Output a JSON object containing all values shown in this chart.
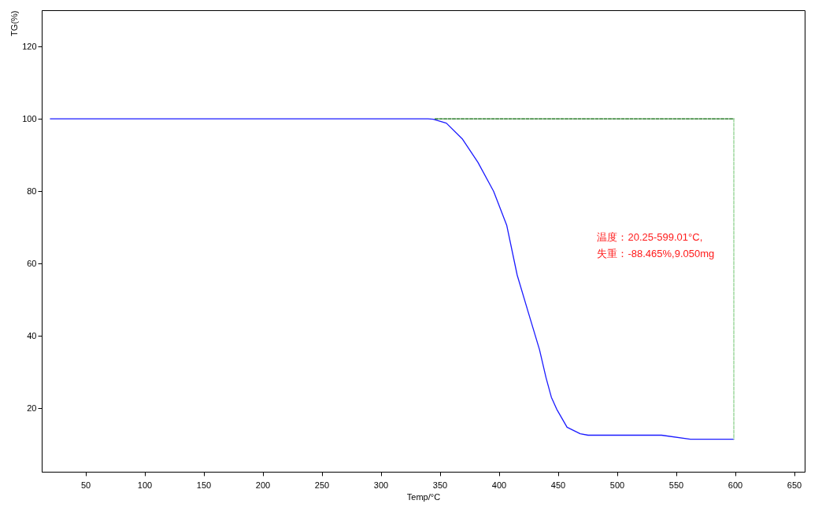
{
  "chart_data": {
    "type": "line",
    "xlabel": "Temp/°C",
    "ylabel": "TG(%)",
    "xlim": [
      13,
      659
    ],
    "xticks": [
      50,
      100,
      150,
      200,
      250,
      300,
      350,
      400,
      450,
      500,
      550,
      600,
      650
    ],
    "ylim": [
      2.5,
      130
    ],
    "yticks": [
      20,
      40,
      60,
      80,
      100,
      120
    ],
    "grid": false,
    "series": [
      {
        "color": "#1a1aff",
        "line_style": "solid",
        "x": [
          20.25,
          340,
          344.5,
          355.6,
          369,
          382.3,
          395.6,
          406.7,
          415.6,
          425,
          434.5,
          440,
          444.5,
          449,
          457.8,
          468.9,
          475.6,
          537.8,
          562.2,
          599
        ],
        "values": [
          100,
          100,
          99.9,
          98.8,
          94.5,
          88,
          80,
          70.6,
          56.8,
          46.5,
          36.2,
          28.5,
          23.1,
          19.8,
          14.8,
          13,
          12.6,
          12.6,
          11.5,
          11.5
        ]
      },
      {
        "color": "#006400",
        "line_style": "dashed",
        "x": [
          346,
          599.01
        ],
        "values": [
          100,
          100
        ]
      },
      {
        "color": "#8fd18f",
        "line_style": "dashed",
        "x": [
          599.01,
          599.01
        ],
        "values": [
          100,
          11.5
        ]
      }
    ],
    "annotations": [
      "温度：20.25-599.01°C,",
      "失重：-88.465%,9.050mg"
    ]
  }
}
